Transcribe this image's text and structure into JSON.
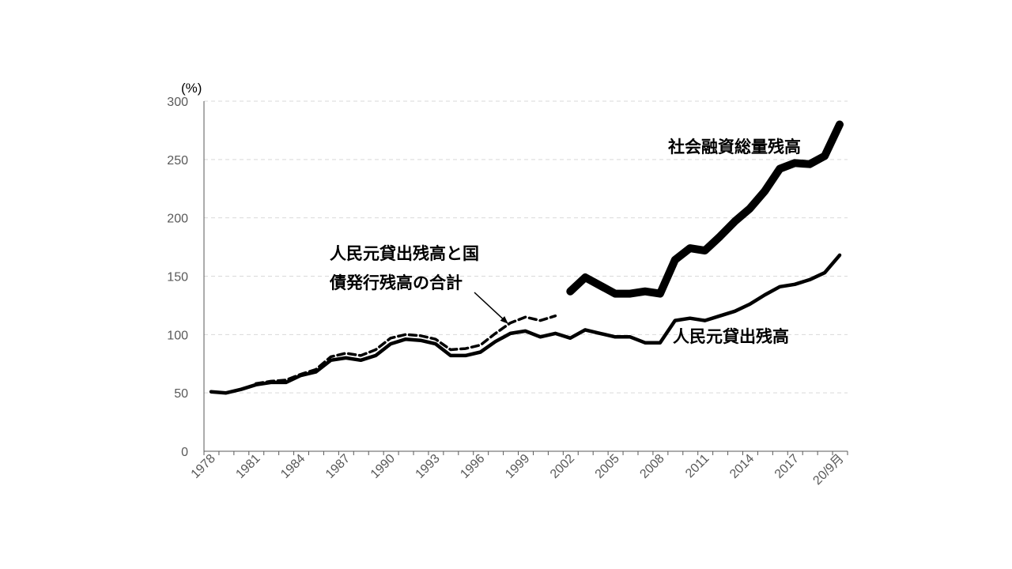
{
  "chart_data": {
    "type": "line",
    "ylabel": "(%)",
    "ylim": [
      0,
      300
    ],
    "yticks": [
      0,
      50,
      100,
      150,
      200,
      250,
      300
    ],
    "xtick_labels": [
      "1978",
      "1981",
      "1984",
      "1987",
      "1990",
      "1993",
      "1996",
      "1999",
      "2002",
      "2005",
      "2008",
      "2011",
      "2014",
      "2017",
      "20/9月"
    ],
    "grid": true,
    "legend": "none",
    "x": [
      "1978",
      "1979",
      "1980",
      "1981",
      "1982",
      "1983",
      "1984",
      "1985",
      "1986",
      "1987",
      "1988",
      "1989",
      "1990",
      "1991",
      "1992",
      "1993",
      "1994",
      "1995",
      "1996",
      "1997",
      "1998",
      "1999",
      "2000",
      "2001",
      "2002",
      "2003",
      "2004",
      "2005",
      "2006",
      "2007",
      "2008",
      "2009",
      "2010",
      "2011",
      "2012",
      "2013",
      "2014",
      "2015",
      "2016",
      "2017",
      "2018",
      "2019",
      "20/9月"
    ],
    "series": [
      {
        "name": "人民元貸出残高",
        "style": "solid",
        "values": [
          51,
          50,
          53,
          57,
          59,
          59,
          65,
          68,
          78,
          80,
          78,
          82,
          92,
          96,
          95,
          92,
          82,
          82,
          85,
          94,
          101,
          103,
          98,
          101,
          97,
          104,
          101,
          98,
          98,
          93,
          93,
          112,
          114,
          112,
          116,
          120,
          126,
          134,
          141,
          143,
          147,
          153,
          168
        ]
      },
      {
        "name": "人民元貸出残高と国債発行残高の合計",
        "style": "dashed",
        "values": [
          null,
          null,
          null,
          58,
          60,
          61,
          66,
          70,
          81,
          84,
          82,
          87,
          97,
          100,
          99,
          96,
          87,
          88,
          91,
          101,
          110,
          115,
          112,
          116,
          null,
          null,
          null,
          null,
          null,
          null,
          null,
          null,
          null,
          null,
          null,
          null,
          null,
          null,
          null,
          null,
          null,
          null,
          null
        ]
      },
      {
        "name": "社会融資総量残高",
        "style": "thick",
        "values": [
          null,
          null,
          null,
          null,
          null,
          null,
          null,
          null,
          null,
          null,
          null,
          null,
          null,
          null,
          null,
          null,
          null,
          null,
          null,
          null,
          null,
          null,
          null,
          null,
          137,
          149,
          142,
          135,
          135,
          137,
          135,
          164,
          174,
          172,
          184,
          197,
          208,
          223,
          242,
          247,
          246,
          253,
          280
        ]
      }
    ],
    "annotations": {
      "total_line1": "人民元貸出残高と国",
      "total_line2": "債発行残高の合計",
      "social": "社会融資総量残高",
      "loans": "人民元貸出残高"
    },
    "colors": {
      "line": "#000000",
      "grid": "#d9d9d9",
      "axis": "#595959",
      "tick_text": "#595959"
    }
  }
}
